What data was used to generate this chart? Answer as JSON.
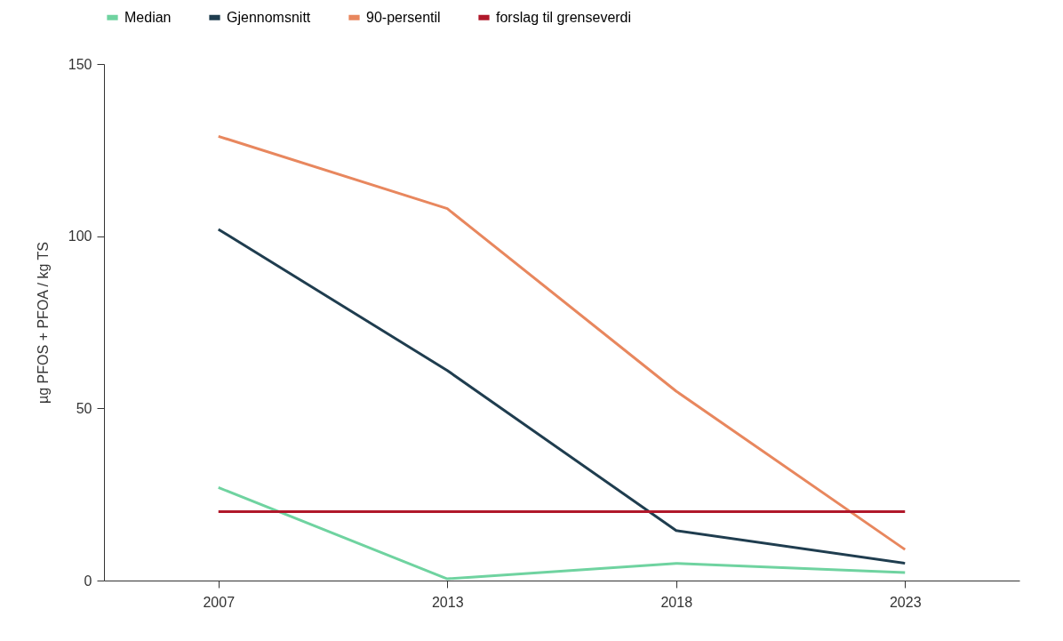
{
  "chart_data": {
    "type": "line",
    "ylabel": "µg  PFOS + PFOA / kg TS",
    "categories": [
      "2007",
      "2013",
      "2018",
      "2023"
    ],
    "series": [
      {
        "name": "Median",
        "color": "#6fd3a0",
        "values": [
          27,
          0.5,
          5,
          2.3
        ]
      },
      {
        "name": "Gjennomsnitt",
        "color": "#1f3d4f",
        "values": [
          102,
          61,
          14.5,
          5
        ]
      },
      {
        "name": "90-persentil",
        "color": "#e8875e",
        "values": [
          129,
          108,
          55,
          9
        ]
      },
      {
        "name": "forslag til grenseverdi",
        "color": "#b0182a",
        "values": [
          20,
          20,
          20,
          20
        ]
      }
    ],
    "ylim": [
      0,
      150
    ],
    "yticks": [
      0,
      50,
      100,
      150
    ],
    "grid": false,
    "legend": "top"
  }
}
